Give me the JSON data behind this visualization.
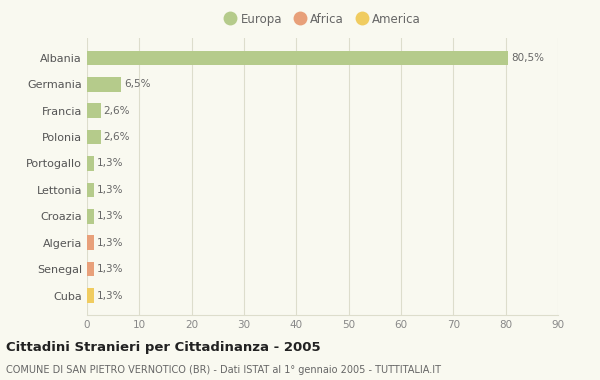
{
  "categories": [
    "Albania",
    "Germania",
    "Francia",
    "Polonia",
    "Portogallo",
    "Lettonia",
    "Croazia",
    "Algeria",
    "Senegal",
    "Cuba"
  ],
  "values": [
    80.5,
    6.5,
    2.6,
    2.6,
    1.3,
    1.3,
    1.3,
    1.3,
    1.3,
    1.3
  ],
  "labels": [
    "80,5%",
    "6,5%",
    "2,6%",
    "2,6%",
    "1,3%",
    "1,3%",
    "1,3%",
    "1,3%",
    "1,3%",
    "1,3%"
  ],
  "colors": [
    "#b5cb8b",
    "#b5cb8b",
    "#b5cb8b",
    "#b5cb8b",
    "#b5cb8b",
    "#b5cb8b",
    "#b5cb8b",
    "#e8a07a",
    "#e8a07a",
    "#f0cc60"
  ],
  "legend_labels": [
    "Europa",
    "Africa",
    "America"
  ],
  "legend_colors": [
    "#b5cb8b",
    "#e8a07a",
    "#f0cc60"
  ],
  "xlim": [
    0,
    90
  ],
  "xticks": [
    0,
    10,
    20,
    30,
    40,
    50,
    60,
    70,
    80,
    90
  ],
  "title": "Cittadini Stranieri per Cittadinanza - 2005",
  "subtitle": "COMUNE DI SAN PIETRO VERNOTICO (BR) - Dati ISTAT al 1° gennaio 2005 - TUTTITALIA.IT",
  "background_color": "#f9f9f0",
  "grid_color": "#ddddcc"
}
